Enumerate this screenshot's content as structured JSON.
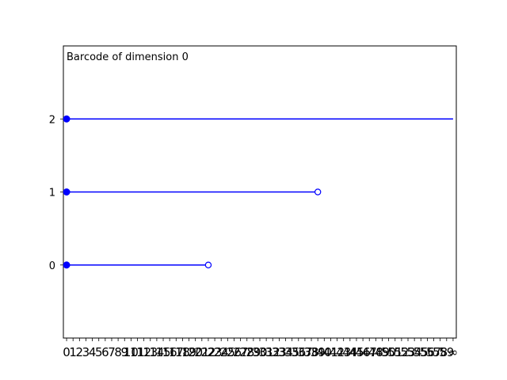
{
  "chart_data": {
    "type": "barcode",
    "title": "Barcode of dimension 0",
    "xlabel": "",
    "ylabel": "",
    "x_ticks": [
      "0",
      "1",
      "2",
      "3",
      "4",
      "5",
      "6",
      "7",
      "8",
      "9",
      "10",
      "11",
      "12",
      "13",
      "14",
      "15",
      "16",
      "17",
      "18",
      "19",
      "20",
      "21",
      "22",
      "23",
      "24",
      "25",
      "26",
      "27",
      "28",
      "29",
      "30",
      "31",
      "32",
      "33",
      "34",
      "35",
      "36",
      "37",
      "38",
      "39",
      "40",
      "41",
      "42",
      "43",
      "44",
      "45",
      "46",
      "47",
      "48",
      "49",
      "50",
      "51",
      "52",
      "53",
      "54",
      "55",
      "56",
      "57",
      "58",
      "59",
      "∞"
    ],
    "y_ticks": [
      "0",
      "1",
      "2"
    ],
    "xlim": [
      -0.5,
      60.5
    ],
    "ylim": [
      -1,
      3
    ],
    "bars": [
      {
        "index": 0,
        "birth": 0,
        "death": 22,
        "death_label": "22"
      },
      {
        "index": 1,
        "birth": 0,
        "death": 39,
        "death_label": "39"
      },
      {
        "index": 2,
        "birth": 0,
        "death": 60,
        "death_label": "∞"
      }
    ],
    "colors": {
      "bar": "#0000ff",
      "frame": "#000000"
    }
  }
}
